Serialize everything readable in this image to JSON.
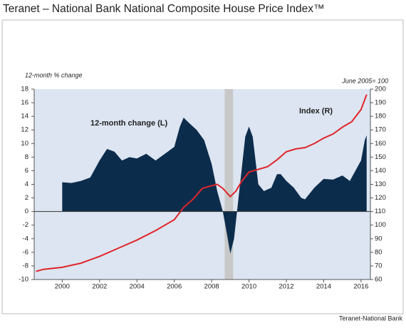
{
  "chart_data": {
    "type": "area-line",
    "title": "Teranet – National Bank National Composite House Price Index™",
    "y_label": "12-month % change",
    "y2_label": "June 2005= 100",
    "source": "Teranet-National Bank",
    "xlim": [
      1998.5,
      2016.5
    ],
    "xticks": [
      2000,
      2002,
      2004,
      2006,
      2008,
      2010,
      2012,
      2014,
      2016
    ],
    "ylim": [
      -10,
      18
    ],
    "yticks": [
      -10,
      -8,
      -6,
      -4,
      -2,
      0,
      2,
      4,
      6,
      8,
      10,
      12,
      14,
      16,
      18
    ],
    "y2lim": [
      60,
      200
    ],
    "y2ticks": [
      60,
      70,
      80,
      90,
      100,
      110,
      120,
      130,
      140,
      150,
      160,
      170,
      180,
      190,
      200
    ],
    "shading": [
      2008.7,
      2009.15
    ],
    "series": [
      {
        "name": "12-month change (L)",
        "color": "#0c2c4c",
        "x": [
          2000.0,
          2000.5,
          2001.0,
          2001.5,
          2002.0,
          2002.4,
          2002.8,
          2003.2,
          2003.6,
          2004.0,
          2004.5,
          2005.0,
          2005.5,
          2006.0,
          2006.3,
          2006.5,
          2006.8,
          2007.2,
          2007.6,
          2008.0,
          2008.3,
          2008.6,
          2008.8,
          2009.0,
          2009.2,
          2009.4,
          2009.6,
          2009.8,
          2010.0,
          2010.2,
          2010.5,
          2010.8,
          2011.2,
          2011.5,
          2011.7,
          2012.0,
          2012.4,
          2012.8,
          2013.0,
          2013.5,
          2014.0,
          2014.5,
          2015.0,
          2015.4,
          2015.7,
          2016.0,
          2016.2,
          2016.3
        ],
        "values": [
          4.3,
          4.2,
          4.5,
          5,
          7.5,
          9.2,
          8.8,
          7.5,
          8,
          7.8,
          8.5,
          7.5,
          8.5,
          9.5,
          12.5,
          13.8,
          13,
          12,
          10.5,
          7,
          3,
          0,
          -3,
          -6.2,
          -4,
          1,
          6,
          11,
          12.5,
          11,
          4,
          3,
          3.5,
          5.5,
          5.5,
          4.5,
          3.5,
          2,
          1.8,
          3.5,
          4.8,
          4.7,
          5.3,
          4.5,
          6,
          7.5,
          10.5,
          11.2
        ]
      },
      {
        "name": "Index (R)",
        "color": "#e0262b",
        "axis": "y2",
        "x": [
          1998.6,
          1999.0,
          2000.0,
          2001.0,
          2002.0,
          2003.0,
          2004.0,
          2005.0,
          2006.0,
          2006.5,
          2007.0,
          2007.5,
          2008.0,
          2008.3,
          2008.6,
          2009.0,
          2009.3,
          2009.6,
          2010.0,
          2010.5,
          2011.0,
          2011.5,
          2012.0,
          2012.5,
          2013.0,
          2013.5,
          2014.0,
          2014.5,
          2015.0,
          2015.5,
          2016.0,
          2016.3
        ],
        "values": [
          66,
          67.5,
          69,
          72,
          77,
          83,
          89,
          96,
          104,
          113,
          119,
          127,
          129,
          130,
          127,
          121,
          125,
          132,
          139,
          141,
          143,
          148,
          154,
          156,
          157,
          160,
          164,
          167,
          172,
          176,
          185,
          196
        ]
      }
    ]
  }
}
